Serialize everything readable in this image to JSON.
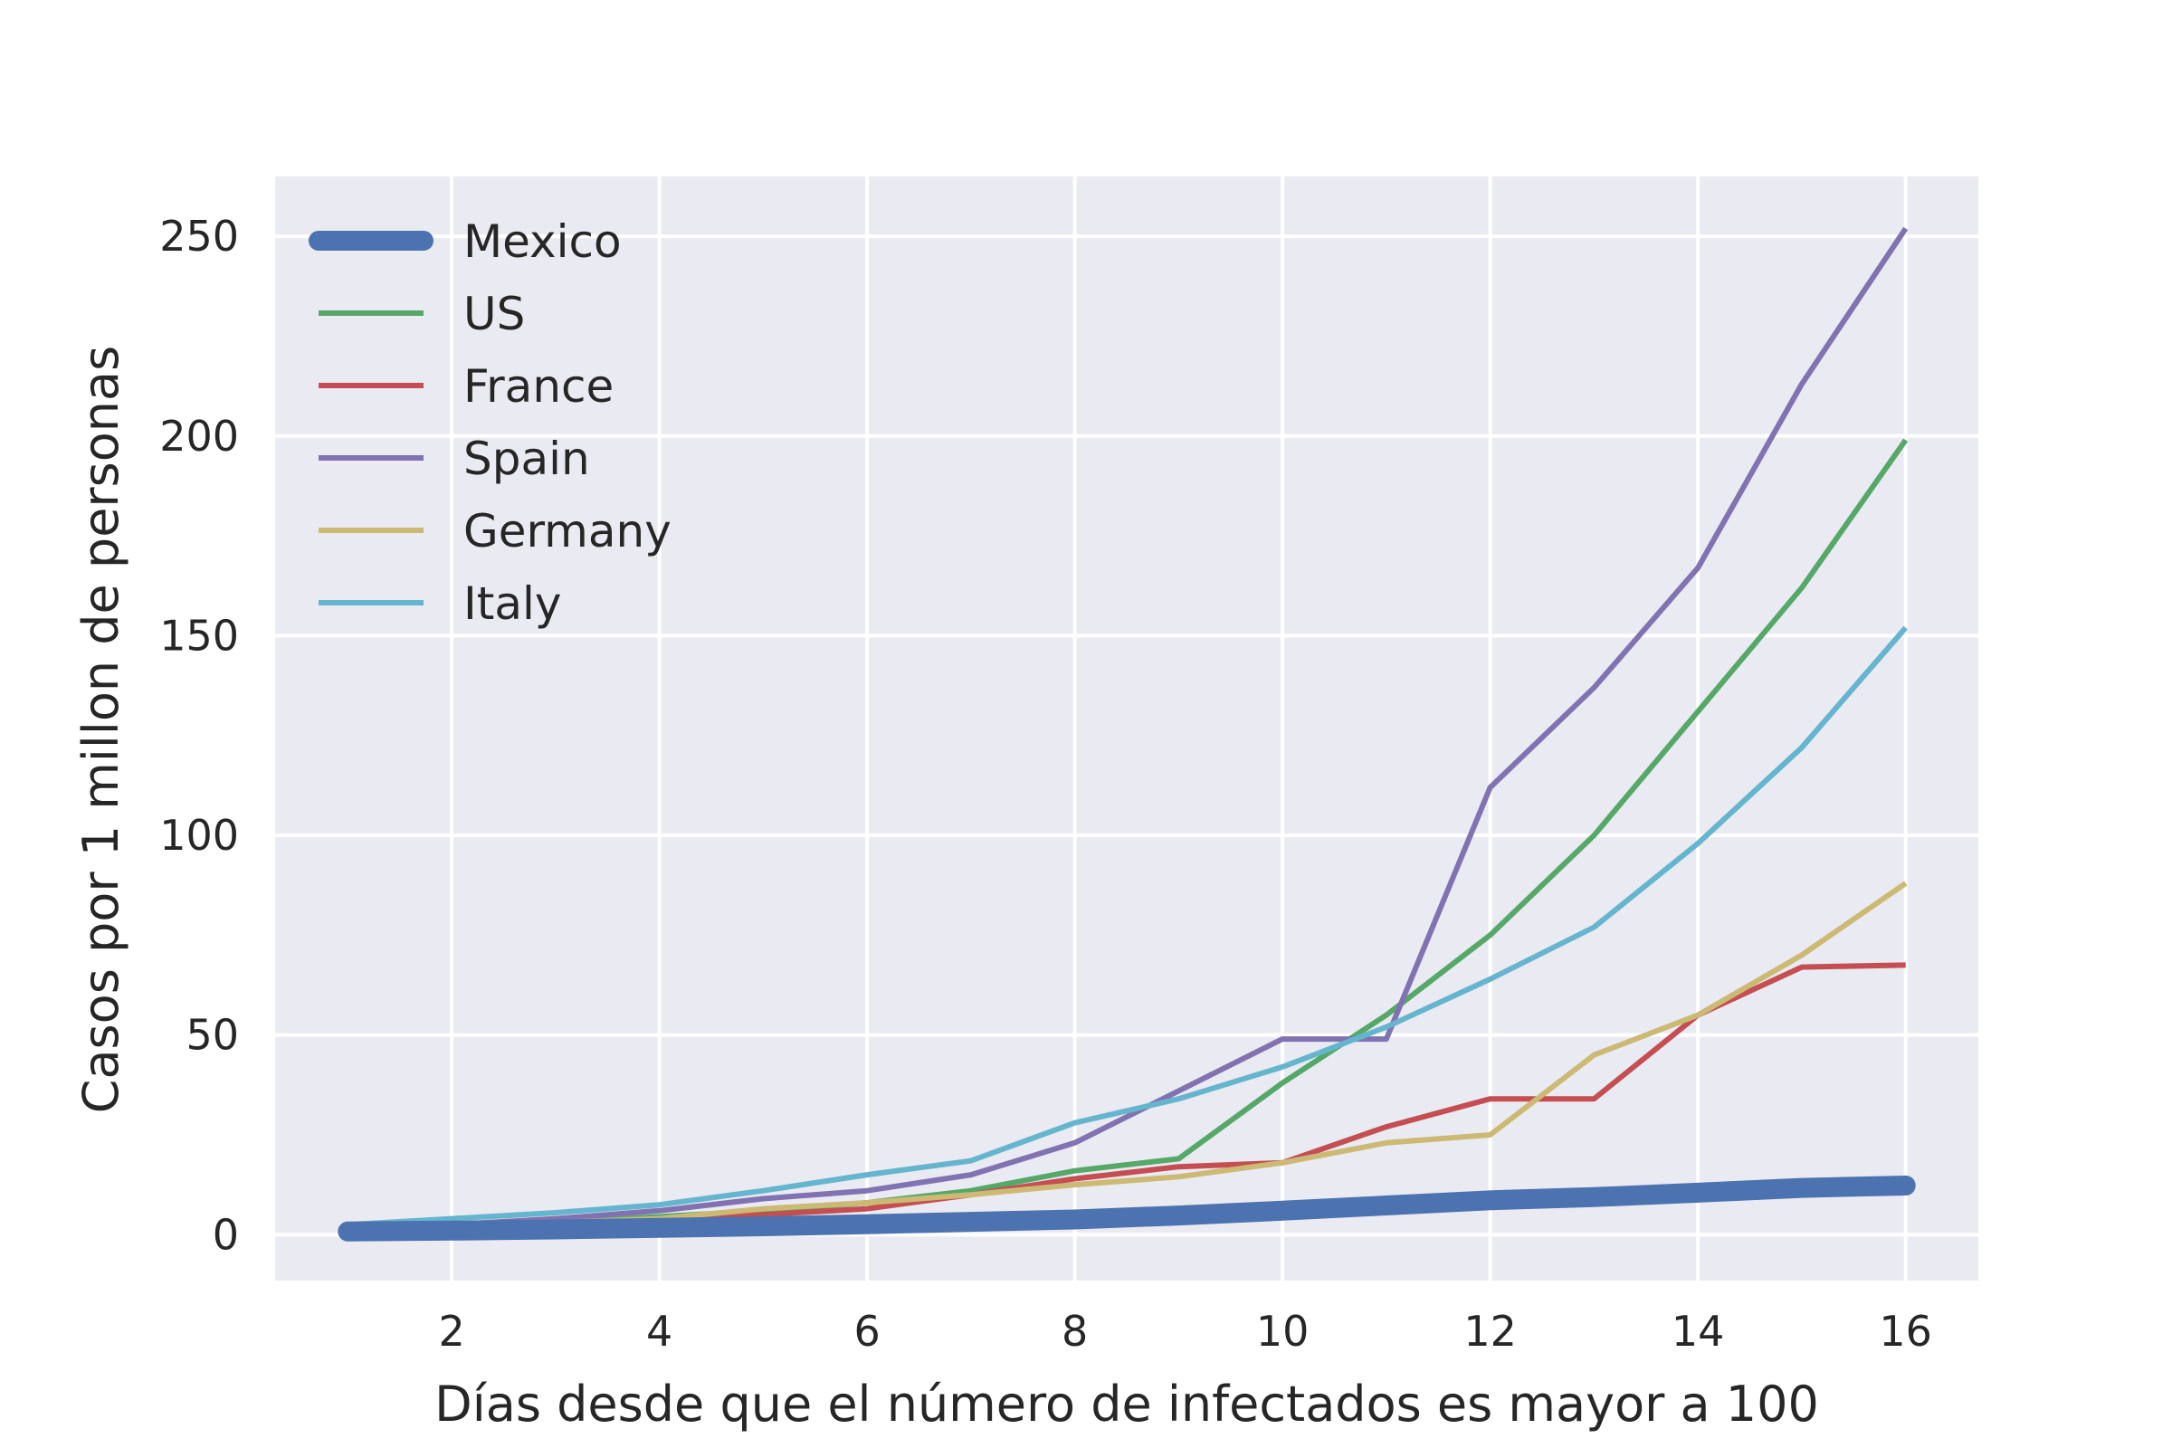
{
  "chart_data": {
    "type": "line",
    "xlabel": "Días desde que el número de infectados es mayor a 100",
    "ylabel": "Casos por 1 millon de personas",
    "xlim": [
      0.3,
      16.7
    ],
    "ylim": [
      -11.5,
      265
    ],
    "xticks": [
      2,
      4,
      6,
      8,
      10,
      12,
      14,
      16
    ],
    "yticks": [
      0,
      50,
      100,
      150,
      200,
      250
    ],
    "grid": true,
    "background": "#eaeaf2",
    "legend_position": "top-left",
    "x": [
      1,
      2,
      3,
      4,
      5,
      6,
      7,
      8,
      9,
      10,
      11,
      12,
      13,
      14,
      15,
      16
    ],
    "series": [
      {
        "name": "Mexico",
        "color": "#4c72b0",
        "emphasis": "thick",
        "values": [
          0.8,
          1.0,
          1.3,
          1.7,
          2.1,
          2.6,
          3.2,
          3.8,
          4.8,
          6.0,
          7.3,
          8.6,
          9.4,
          10.5,
          11.7,
          12.3
        ]
      },
      {
        "name": "US",
        "color": "#55a868",
        "values": [
          1.0,
          2.0,
          3.0,
          4.5,
          6.0,
          8.0,
          11.0,
          16.0,
          19.0,
          38.0,
          55.0,
          75.0,
          100.0,
          131.0,
          162.0,
          199.0
        ]
      },
      {
        "name": "France",
        "color": "#c44e52",
        "values": [
          1.5,
          2.0,
          2.8,
          3.5,
          5.0,
          6.5,
          10.0,
          14.0,
          17.0,
          18.0,
          27.0,
          34.0,
          34.0,
          55.0,
          67.0,
          67.5
        ]
      },
      {
        "name": "Spain",
        "color": "#8172b2",
        "values": [
          1.5,
          2.5,
          4.0,
          6.0,
          9.0,
          11.0,
          15.0,
          23.0,
          36.0,
          49.0,
          49.0,
          112.0,
          137.0,
          167.0,
          213.0,
          252.0
        ]
      },
      {
        "name": "Germany",
        "color": "#ccb974",
        "values": [
          1.5,
          2.0,
          3.0,
          4.0,
          6.5,
          8.0,
          10.0,
          12.5,
          14.5,
          18.0,
          23.0,
          25.0,
          45.0,
          55.0,
          70.0,
          88.0
        ]
      },
      {
        "name": "Italy",
        "color": "#64b5cd",
        "values": [
          2.5,
          4.0,
          5.5,
          7.5,
          11.0,
          15.0,
          18.5,
          28.0,
          34.0,
          42.0,
          52.0,
          64.0,
          77.0,
          98.0,
          122.0,
          152.0
        ]
      }
    ]
  }
}
